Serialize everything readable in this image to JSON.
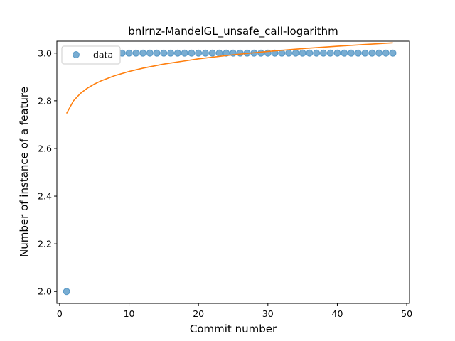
{
  "chart_data": {
    "type": "scatter",
    "title": "bnlrnz-MandelGL_unsafe_call-logarithm",
    "xlabel": "Commit number",
    "ylabel": "Number of instance of a feature",
    "xlim": [
      -0.4,
      50.4
    ],
    "ylim": [
      1.95,
      3.05
    ],
    "xticks": [
      0,
      10,
      20,
      30,
      40,
      50
    ],
    "yticks": [
      2.0,
      2.2,
      2.4,
      2.6,
      2.8,
      3.0
    ],
    "xtick_labels": [
      "0",
      "10",
      "20",
      "30",
      "40",
      "50"
    ],
    "ytick_labels": [
      "2.0",
      "2.2",
      "2.4",
      "2.6",
      "2.8",
      "3.0"
    ],
    "legend": {
      "location": "upper-left",
      "entries": [
        "data"
      ]
    },
    "grid": false,
    "series": [
      {
        "name": "data",
        "kind": "scatter",
        "color": "#1f77b4",
        "x": [
          1,
          2,
          3,
          4,
          5,
          6,
          7,
          8,
          9,
          10,
          11,
          12,
          13,
          14,
          15,
          16,
          17,
          18,
          19,
          20,
          21,
          22,
          23,
          24,
          25,
          26,
          27,
          28,
          29,
          30,
          31,
          32,
          33,
          34,
          35,
          36,
          37,
          38,
          39,
          40,
          41,
          42,
          43,
          44,
          45,
          46,
          47,
          48
        ],
        "y": [
          2,
          3,
          3,
          3,
          3,
          3,
          3,
          3,
          3,
          3,
          3,
          3,
          3,
          3,
          3,
          3,
          3,
          3,
          3,
          3,
          3,
          3,
          3,
          3,
          3,
          3,
          3,
          3,
          3,
          3,
          3,
          3,
          3,
          3,
          3,
          3,
          3,
          3,
          3,
          3,
          3,
          3,
          3,
          3,
          3,
          3,
          3,
          3
        ]
      },
      {
        "kind": "line",
        "color": "#ff7f0e",
        "x": [
          1,
          2,
          3,
          4,
          5,
          6,
          8,
          10,
          12,
          15,
          20,
          25,
          30,
          35,
          40,
          45,
          48
        ],
        "y": [
          2.747,
          2.8,
          2.831,
          2.853,
          2.87,
          2.884,
          2.906,
          2.923,
          2.937,
          2.954,
          2.976,
          2.993,
          3.007,
          3.019,
          3.029,
          3.038,
          3.043
        ]
      }
    ]
  }
}
